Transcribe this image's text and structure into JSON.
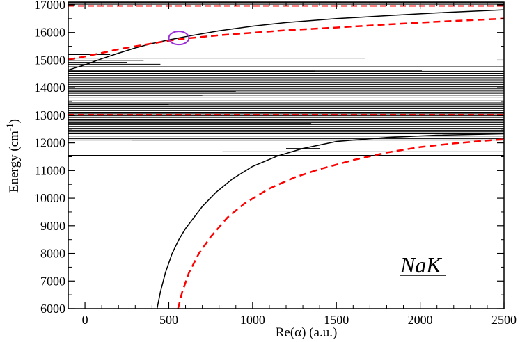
{
  "chart_data": {
    "type": "line",
    "title": "",
    "xlabel": "Re(α) (a.u.)",
    "ylabel_main": "Energy (cm",
    "ylabel_sup": "-1",
    "ylabel_close": ")",
    "xlim": [
      -100,
      2500
    ],
    "ylim": [
      6000,
      17100
    ],
    "x_ticks": [
      0,
      500,
      1000,
      1500,
      2000,
      2500
    ],
    "x_tick_labels": [
      "0",
      "500",
      "1000",
      "1500",
      "2000",
      "2500"
    ],
    "y_ticks": [
      6000,
      7000,
      8000,
      9000,
      10000,
      11000,
      12000,
      13000,
      14000,
      15000,
      16000,
      17000
    ],
    "y_tick_labels": [
      "6000",
      "7000",
      "8000",
      "9000",
      "10000",
      "11000",
      "12000",
      "13000",
      "14000",
      "15000",
      "16000",
      "17000"
    ],
    "annotation": "NaK",
    "colors": {
      "solid": "#000000",
      "dashed": "#ff0000",
      "circle": "#9b30d9"
    },
    "series": [
      {
        "style": "solid",
        "points": [
          [
            -100,
            14640
          ],
          [
            0,
            14830
          ],
          [
            100,
            15050
          ],
          [
            200,
            15250
          ],
          [
            300,
            15440
          ],
          [
            400,
            15600
          ],
          [
            500,
            15730
          ],
          [
            600,
            15850
          ],
          [
            800,
            16060
          ],
          [
            1000,
            16230
          ],
          [
            1200,
            16360
          ],
          [
            1500,
            16500
          ],
          [
            1800,
            16610
          ],
          [
            2100,
            16710
          ],
          [
            2500,
            16820
          ]
        ]
      },
      {
        "style": "dashed",
        "points": [
          [
            -100,
            15020
          ],
          [
            0,
            15130
          ],
          [
            100,
            15260
          ],
          [
            200,
            15390
          ],
          [
            300,
            15500
          ],
          [
            400,
            15600
          ],
          [
            500,
            15700
          ],
          [
            600,
            15780
          ],
          [
            800,
            15900
          ],
          [
            1000,
            15990
          ],
          [
            1200,
            16080
          ],
          [
            1500,
            16180
          ],
          [
            1800,
            16290
          ],
          [
            2100,
            16390
          ],
          [
            2500,
            16500
          ]
        ]
      },
      {
        "style": "solid",
        "points": [
          [
            430,
            6000
          ],
          [
            450,
            6600
          ],
          [
            480,
            7300
          ],
          [
            520,
            8000
          ],
          [
            560,
            8500
          ],
          [
            600,
            8900
          ],
          [
            650,
            9300
          ],
          [
            700,
            9700
          ],
          [
            780,
            10200
          ],
          [
            880,
            10700
          ],
          [
            1000,
            11150
          ],
          [
            1150,
            11530
          ],
          [
            1300,
            11800
          ],
          [
            1500,
            12050
          ],
          [
            1800,
            12200
          ],
          [
            2100,
            12280
          ],
          [
            2500,
            12330
          ]
        ]
      },
      {
        "style": "dashed",
        "points": [
          [
            555,
            6000
          ],
          [
            580,
            6600
          ],
          [
            620,
            7300
          ],
          [
            680,
            8000
          ],
          [
            750,
            8600
          ],
          [
            850,
            9300
          ],
          [
            950,
            9800
          ],
          [
            1100,
            10350
          ],
          [
            1250,
            10750
          ],
          [
            1400,
            11050
          ],
          [
            1600,
            11380
          ],
          [
            1800,
            11650
          ],
          [
            2000,
            11850
          ],
          [
            2200,
            11980
          ],
          [
            2350,
            12060
          ],
          [
            2500,
            12130
          ]
        ]
      }
    ],
    "horizontal_lines_full": [
      11550,
      12150,
      12250,
      12330,
      12400,
      12460,
      12530,
      12600,
      12660,
      12730,
      12800,
      12860,
      12920,
      12980,
      13050,
      13110,
      13180,
      13240,
      13310,
      13380,
      13450,
      13520,
      13590,
      13660,
      13730,
      13800,
      13880,
      13960,
      14040,
      14120,
      14200,
      14280,
      14360,
      14440,
      14520,
      14600,
      14760,
      17020,
      17060,
      17090
    ],
    "horizontal_lines_partial": [
      {
        "y": 15070,
        "x_end": 1670
      },
      {
        "y": 14630,
        "x_end": 2010
      },
      {
        "y": 14600,
        "x_end": 1370
      },
      {
        "y": 14920,
        "x_end": 250
      },
      {
        "y": 14850,
        "x_end": 450
      },
      {
        "y": 14990,
        "x_end": 350
      },
      {
        "y": 15200,
        "x_end": 150
      },
      {
        "y": 13870,
        "x_end": 900
      },
      {
        "y": 13720,
        "x_end": 700
      },
      {
        "y": 13400,
        "x_end": 500
      },
      {
        "y": 12700,
        "x_end": 1350
      },
      {
        "y": 12100,
        "x_end": 1650
      }
    ],
    "horizontal_lines_offset": [
      {
        "y": 11680,
        "x_start": 820
      },
      {
        "y": 11800,
        "x_start": 1200,
        "x_end": 1400
      },
      {
        "y": 12100,
        "x_start": 280
      }
    ],
    "dashed_horizontal": [
      16960,
      13020
    ],
    "circle": {
      "cx": 560,
      "cy": 15800,
      "rx": 60,
      "ry": 240
    }
  }
}
